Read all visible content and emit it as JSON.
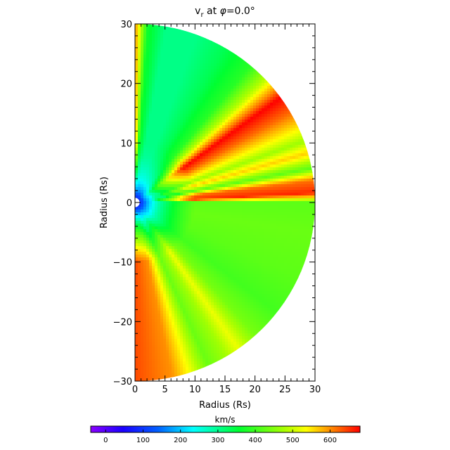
{
  "chart_data": [
    {
      "type": "heatmap",
      "title": "v_r at φ=0.0°",
      "title_parts": {
        "main": "v",
        "sub": "r",
        "rest": " at ",
        "phi": "φ",
        "value": "=0.0°"
      },
      "xlabel": "Radius (Rs)",
      "ylabel": "Radius (Rs)",
      "xlim": [
        0,
        30
      ],
      "ylim": [
        -30,
        30
      ],
      "x_ticks": [
        0,
        5,
        10,
        15,
        20,
        25,
        30
      ],
      "y_ticks": [
        -30,
        -20,
        -10,
        0,
        10,
        20,
        30
      ],
      "x_tick_labels": [
        "0",
        "5",
        "10",
        "15",
        "20",
        "25",
        "30"
      ],
      "y_tick_labels": [
        "−30",
        "−20",
        "−10",
        "0",
        "10",
        "20",
        "30"
      ],
      "domain": "semicircle r ≤ 30 Rs, x ≥ 0",
      "inner_boundary_radius": 0.6,
      "radial_profile": [
        {
          "r": 0.0,
          "v": 180
        },
        {
          "r": 0.7,
          "v": 90
        },
        {
          "r": 2.0,
          "v": 150
        },
        {
          "r": 4.0,
          "v": 210
        },
        {
          "r": 8.0,
          "v": 260
        },
        {
          "r": 14.0,
          "v": 290
        },
        {
          "r": 30.0,
          "v": 300
        }
      ],
      "angular_structure": [
        {
          "angle_deg": -90,
          "v": 640
        },
        {
          "angle_deg": -78,
          "v": 600
        },
        {
          "angle_deg": -72,
          "v": 520
        },
        {
          "angle_deg": -66,
          "v": 430
        },
        {
          "angle_deg": -60,
          "v": 470
        },
        {
          "angle_deg": -55,
          "v": 520
        },
        {
          "angle_deg": -48,
          "v": 440
        },
        {
          "angle_deg": -38,
          "v": 400
        },
        {
          "angle_deg": -25,
          "v": 420
        },
        {
          "angle_deg": -10,
          "v": 430
        },
        {
          "angle_deg": 0,
          "v": 420
        },
        {
          "angle_deg": 3,
          "v": 660
        },
        {
          "angle_deg": 7,
          "v": 620
        },
        {
          "angle_deg": 11,
          "v": 420
        },
        {
          "angle_deg": 16,
          "v": 560
        },
        {
          "angle_deg": 20,
          "v": 470
        },
        {
          "angle_deg": 30,
          "v": 620
        },
        {
          "angle_deg": 36,
          "v": 680
        },
        {
          "angle_deg": 43,
          "v": 500
        },
        {
          "angle_deg": 50,
          "v": 380
        },
        {
          "angle_deg": 60,
          "v": 330
        },
        {
          "angle_deg": 70,
          "v": 300
        },
        {
          "angle_deg": 80,
          "v": 300
        },
        {
          "angle_deg": 86,
          "v": 360
        },
        {
          "angle_deg": 90,
          "v": 600
        }
      ]
    },
    {
      "type": "colorbar",
      "label": "km/s",
      "range": [
        -40,
        680
      ],
      "ticks": [
        0,
        100,
        200,
        300,
        400,
        500,
        600
      ],
      "tick_labels": [
        "0",
        "100",
        "200",
        "300",
        "400",
        "500",
        "600"
      ],
      "colormap": "rainbow (violet → blue → cyan → green → yellow → red)"
    }
  ]
}
